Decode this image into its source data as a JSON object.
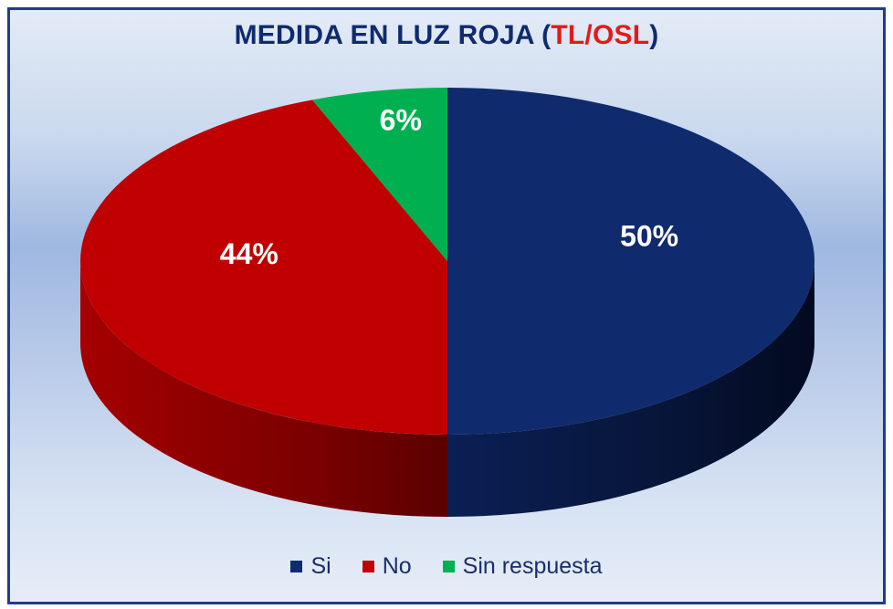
{
  "title": {
    "prefix": "MEDIDA EN LUZ ROJA (",
    "accent": "TL/OSL",
    "suffix": ")"
  },
  "colors": {
    "si": "#0f2b6e",
    "no": "#c00000",
    "sin_respuesta": "#00b050",
    "title": "#0f2b6e",
    "accent": "#e01b1b"
  },
  "chart_data": {
    "type": "pie",
    "style": "3d",
    "title": "MEDIDA EN LUZ ROJA (TL/OSL)",
    "legend_position": "bottom",
    "slices": [
      {
        "label": "Si",
        "value": 50,
        "display": "50%",
        "color": "#0f2b6e"
      },
      {
        "label": "No",
        "value": 44,
        "display": "44%",
        "color": "#c00000"
      },
      {
        "label": "Sin respuesta",
        "value": 6,
        "display": "6%",
        "color": "#00b050"
      }
    ]
  },
  "legend": [
    {
      "label": "Si",
      "color": "#0f2b6e"
    },
    {
      "label": "No",
      "color": "#c00000"
    },
    {
      "label": "Sin respuesta",
      "color": "#00b050"
    }
  ]
}
